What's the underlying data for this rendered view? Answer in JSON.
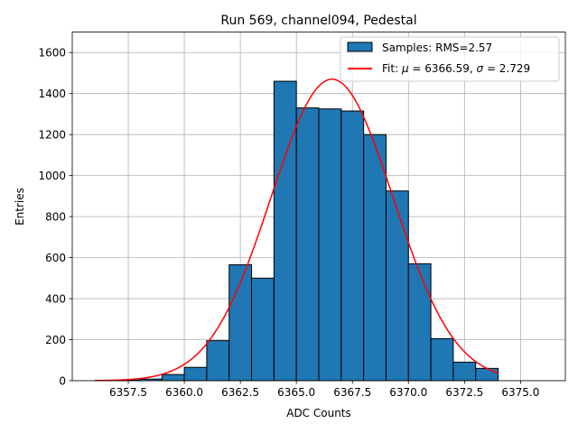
{
  "chart_data": {
    "type": "bar",
    "title": "Run 569, channel094, Pedestal",
    "xlabel": "ADC Counts",
    "ylabel": "Entries",
    "xlim": [
      6355.0,
      6377.0
    ],
    "ylim": [
      0,
      1700
    ],
    "xticks": [
      6357.5,
      6360.0,
      6362.5,
      6365.0,
      6367.5,
      6370.0,
      6372.5,
      6375.0
    ],
    "xtick_labels": [
      "6357.5",
      "6360.0",
      "6362.5",
      "6365.0",
      "6367.5",
      "6370.0",
      "6372.5",
      "6375.0"
    ],
    "yticks": [
      0,
      200,
      400,
      600,
      800,
      1000,
      1200,
      1400,
      1600
    ],
    "ytick_labels": [
      "0",
      "200",
      "400",
      "600",
      "800",
      "1000",
      "1200",
      "1400",
      "1600"
    ],
    "grid": true,
    "legend_position": "top-right",
    "histogram": {
      "name": "Samples: RMS=2.57",
      "color": "#1f77b4",
      "edge_color": "#000000",
      "bin_edges": [
        6357.0,
        6358.0,
        6359.0,
        6360.0,
        6361.0,
        6362.0,
        6363.0,
        6364.0,
        6365.0,
        6366.0,
        6367.0,
        6368.0,
        6369.0,
        6370.0,
        6371.0,
        6372.0,
        6373.0,
        6374.0
      ],
      "counts": [
        3,
        8,
        30,
        65,
        195,
        565,
        500,
        1460,
        1330,
        1325,
        1315,
        1200,
        925,
        570,
        205,
        90,
        60
      ]
    },
    "fit": {
      "label_prefix": "Fit: ",
      "label_mu_symbol": "μ",
      "label_mu_text": " = 6366.59, ",
      "label_sigma_symbol": "σ",
      "label_sigma_text": " = 2.729",
      "color": "#ff0000",
      "mu": 6366.59,
      "sigma": 2.729,
      "amplitude": 1470,
      "x_range": [
        6356.0,
        6374.0
      ]
    }
  }
}
